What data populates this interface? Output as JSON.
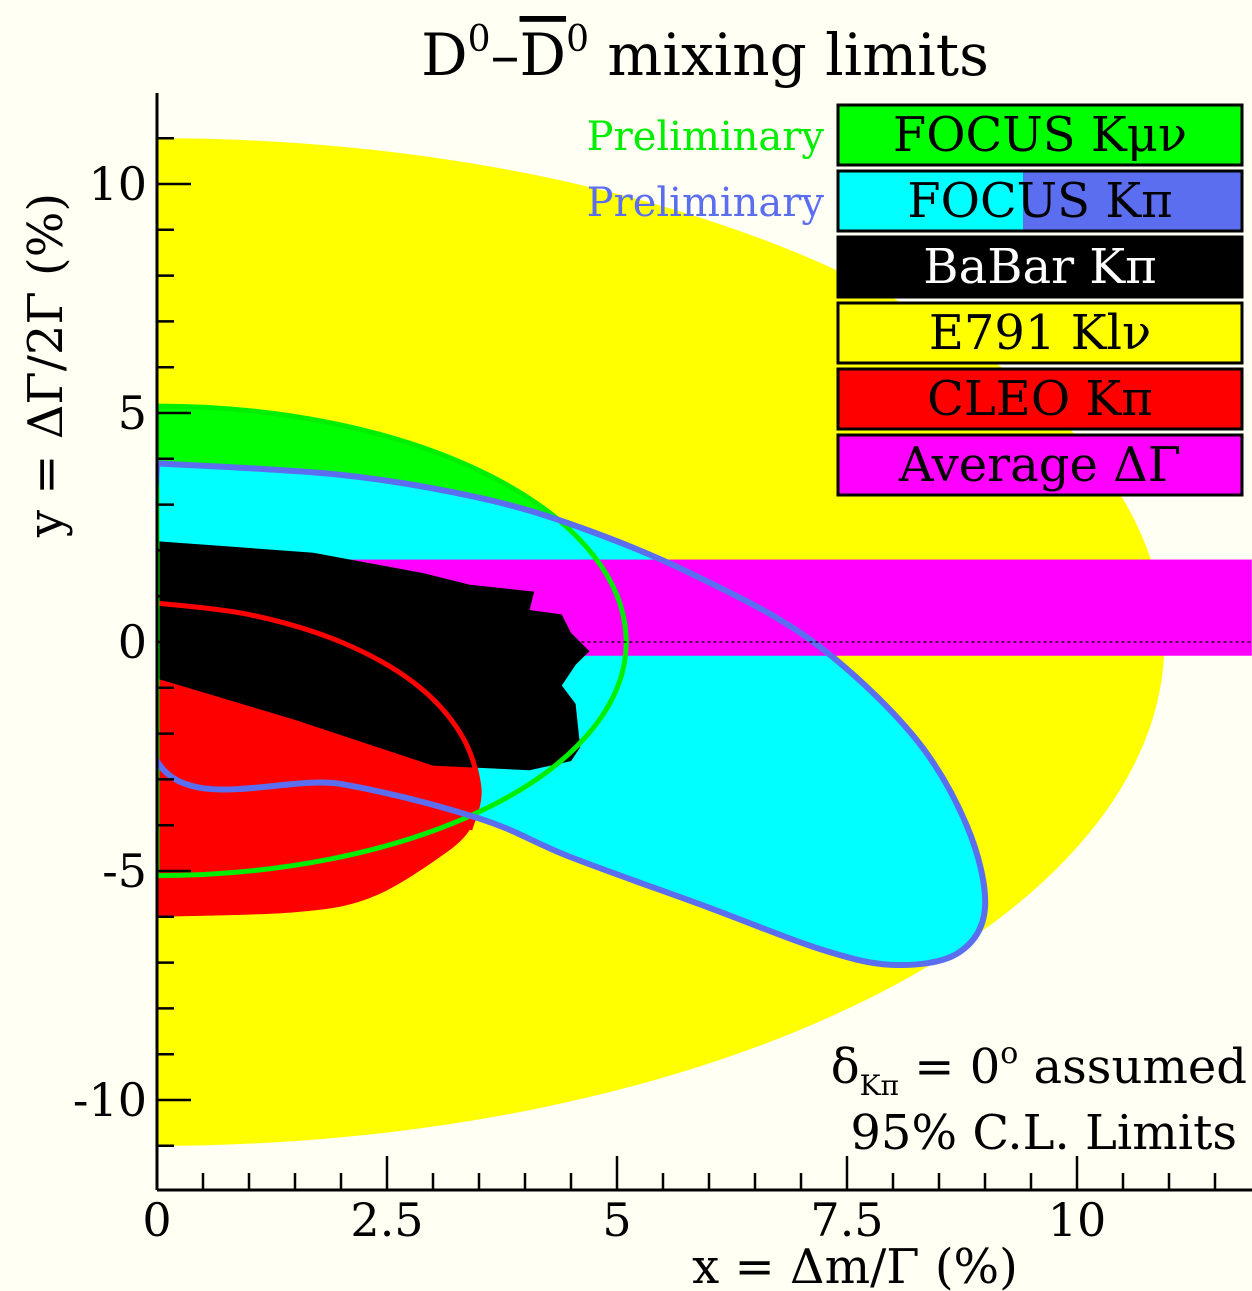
{
  "chart_data": {
    "type": "area",
    "title": {
      "d": "D",
      "sup": "0",
      "dash": "–",
      "dbar": "D",
      "sup2": "0",
      "rest": " mixing limits"
    },
    "xlabel": "x = Δm/Γ  (%)",
    "ylabel": "y = ΔΓ/2Γ  (%)",
    "xlim": [
      0,
      11.9
    ],
    "ylim": [
      -12,
      12
    ],
    "xticks": [
      0,
      2.5,
      5,
      7.5,
      10
    ],
    "xtick_labels": [
      "0",
      "2.5",
      "5",
      "7.5",
      "10"
    ],
    "yticks": [
      10,
      5,
      0,
      -5,
      -10
    ],
    "ytick_labels": [
      "10",
      "5",
      "0",
      "-5",
      "-10"
    ],
    "zero_line": true,
    "background_color": "#fffff3",
    "legend": {
      "placement": "top-right",
      "entries": [
        {
          "label": "FOCUS Kμν",
          "color": "#00ff00",
          "text_color": "#000000",
          "note": "Preliminary",
          "note_color": "#00ee00"
        },
        {
          "label": "FOCUS Kπ",
          "color": "#00ffff",
          "color2": "#5b6ef0",
          "text_color": "#000000",
          "note": "Preliminary",
          "note_color": "#5b6ef0"
        },
        {
          "label": "BaBar Kπ",
          "color": "#000000",
          "text_color": "#ffffff"
        },
        {
          "label": "E791 Klν",
          "color": "#ffff00",
          "text_color": "#000000"
        },
        {
          "label": "CLEO Kπ",
          "color": "#ff0000",
          "text_color": "#000000"
        },
        {
          "label": "Average ΔΓ",
          "color": "#ff00ff",
          "text_color": "#000000"
        }
      ]
    },
    "annotations": {
      "delta_symbol": "δ",
      "delta_sub": "Kπ",
      "delta_text": " = 0",
      "delta_sup": "o",
      "delta_rest": " assumed",
      "cl_text": "95% C.L. Limits"
    },
    "regions": {
      "e791": {
        "name": "E791 Klν",
        "color": "#ffff00",
        "shape": "half-ellipse",
        "center": [
          0,
          0
        ],
        "rx": 10.95,
        "ry": 11.0
      },
      "focus_kmunu": {
        "name": "FOCUS Kμν",
        "color": "#00ff00",
        "outline": "#00ee00",
        "shape": "half-ellipse",
        "center": [
          0,
          0
        ],
        "rx": 5.1,
        "ry_top": 5.15,
        "ry_bottom": 5.1
      },
      "average": {
        "name": "Average ΔΓ",
        "color": "#ff00ff",
        "x_range": [
          0,
          11.9
        ],
        "y_range": [
          -0.3,
          1.8
        ]
      },
      "cleo": {
        "name": "CLEO Kπ",
        "color": "#ff0000",
        "points": [
          [
            0,
            0.85
          ],
          [
            1.0,
            0.6
          ],
          [
            2.0,
            0.0
          ],
          [
            2.8,
            -0.9
          ],
          [
            3.3,
            -2.0
          ],
          [
            3.5,
            -3.2
          ],
          [
            3.4,
            -4.1
          ],
          [
            3.0,
            -4.8
          ],
          [
            2.3,
            -5.6
          ],
          [
            1.5,
            -5.9
          ],
          [
            0,
            -6.0
          ]
        ]
      },
      "babar": {
        "name": "BaBar Kπ",
        "color": "#000000",
        "points": [
          [
            0,
            2.2
          ],
          [
            1.7,
            1.95
          ],
          [
            2.9,
            1.5
          ],
          [
            3.4,
            1.25
          ],
          [
            4.1,
            1.1
          ],
          [
            4.05,
            0.7
          ],
          [
            4.4,
            0.6
          ],
          [
            4.5,
            0.2
          ],
          [
            4.7,
            -0.2
          ],
          [
            4.55,
            -0.5
          ],
          [
            4.4,
            -0.95
          ],
          [
            4.55,
            -1.35
          ],
          [
            4.6,
            -2.3
          ],
          [
            4.5,
            -2.6
          ],
          [
            4.05,
            -2.8
          ],
          [
            3.0,
            -2.7
          ],
          [
            1.5,
            -1.7
          ],
          [
            0,
            -0.8
          ]
        ]
      },
      "focus_kpi": {
        "name": "FOCUS Kπ",
        "color": "#00ffff",
        "outline": "#5b6ef0",
        "points": [
          [
            0,
            3.9
          ],
          [
            2.0,
            3.65
          ],
          [
            3.5,
            3.15
          ],
          [
            4.6,
            2.5
          ],
          [
            5.8,
            1.5
          ],
          [
            7.1,
            0.05
          ],
          [
            8.2,
            -2.0
          ],
          [
            8.8,
            -4.0
          ],
          [
            9.0,
            -5.8
          ],
          [
            8.7,
            -6.8
          ],
          [
            8.0,
            -7.05
          ],
          [
            7.2,
            -6.7
          ],
          [
            6.0,
            -5.8
          ],
          [
            4.5,
            -4.7
          ],
          [
            3.5,
            -3.85
          ],
          [
            2.0,
            -3.1
          ],
          [
            0,
            -2.6
          ]
        ]
      }
    }
  }
}
